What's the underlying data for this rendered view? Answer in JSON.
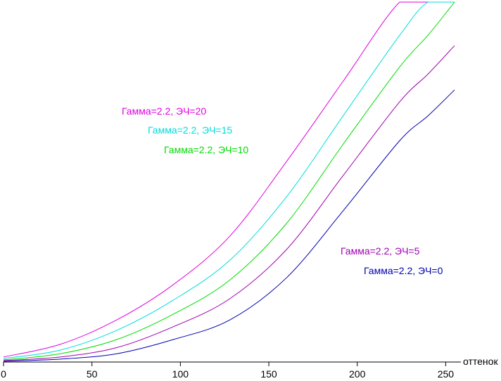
{
  "chart_data": {
    "type": "line",
    "x_label": "оттенок",
    "x": [
      0,
      32,
      64,
      96,
      128,
      160,
      192,
      224,
      240,
      255
    ],
    "xlim": [
      0,
      258.6
    ],
    "xticks": [
      0,
      50,
      100,
      150,
      200,
      250
    ],
    "ylim": [
      0,
      1
    ],
    "series": [
      {
        "name": "Гамма=2.2, ЭЧ=20",
        "color": "#e000e0",
        "values": [
          0.014,
          0.049,
          0.117,
          0.215,
          0.35,
          0.557,
          0.78,
          1,
          1,
          1
        ]
      },
      {
        "name": "Гамма=2.2, ЭЧ=15",
        "color": "#00dcdc",
        "values": [
          0.01,
          0.033,
          0.088,
          0.172,
          0.283,
          0.459,
          0.684,
          0.908,
          1,
          1
        ]
      },
      {
        "name": "Гамма=2.2, ЭЧ=10",
        "color": "#00dc00",
        "values": [
          0.006,
          0.023,
          0.0625,
          0.133,
          0.228,
          0.385,
          0.605,
          0.82,
          0.908,
          1
        ]
      },
      {
        "name": "Гамма=2.2, ЭЧ=5",
        "color": "#a000b0",
        "values": [
          0.004,
          0.014,
          0.04,
          0.098,
          0.176,
          0.3125,
          0.518,
          0.723,
          0.8,
          0.879
        ]
      },
      {
        "name": "Гамма=2.2, ЭЧ=0",
        "color": "#0000b0",
        "values": [
          0.002,
          0.008,
          0.023,
          0.0625,
          0.117,
          0.234,
          0.42,
          0.615,
          0.684,
          0.756
        ]
      }
    ]
  }
}
